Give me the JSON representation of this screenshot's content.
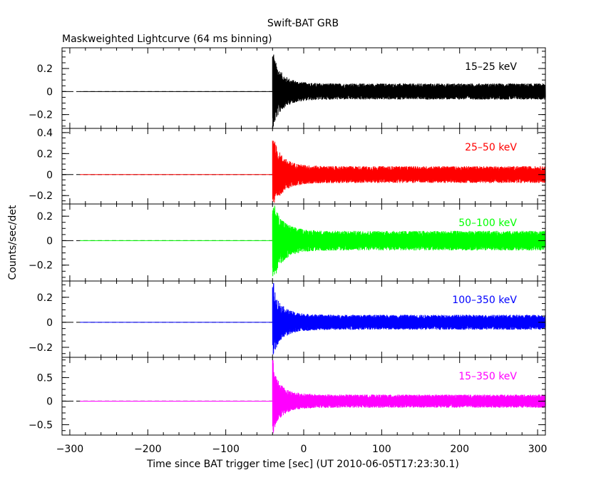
{
  "chart_data": {
    "type": "line",
    "title": "Swift-BAT GRB",
    "subtitle": "Maskweighted Lightcurve (64 ms binning)",
    "xlabel": "Time since BAT trigger time [sec] (UT 2010-06-05T17:23:30.1)",
    "ylabel": "Counts/sec/det",
    "xlim": [
      -310,
      310
    ],
    "x_ticks": [
      -300,
      -200,
      -100,
      0,
      100,
      200,
      300
    ],
    "x_tick_labels": [
      "−300",
      "−200",
      "−100",
      "0",
      "100",
      "200",
      "300"
    ],
    "grid": false,
    "zero_reference_line": "dashed",
    "flat_until": -40,
    "data_start": -287,
    "data_end": 310,
    "burst_onset": -40,
    "series": [
      {
        "name": "15–25 keV",
        "color": "#000000",
        "ylim": [
          -0.32,
          0.38
        ],
        "y_ticks": [
          -0.2,
          0,
          0.2
        ],
        "y_tick_labels": [
          "−0.2",
          "0",
          "0.2"
        ],
        "flat_value": 0,
        "onset_peak": 0.35,
        "onset_trough": -0.32,
        "steady_amplitude": 0.07
      },
      {
        "name": "25–50 keV",
        "color": "#ff0000",
        "ylim": [
          -0.28,
          0.44
        ],
        "y_ticks": [
          -0.2,
          0,
          0.2,
          0.4
        ],
        "y_tick_labels": [
          "−0.2",
          "0",
          "0.2",
          "0.4"
        ],
        "flat_value": 0,
        "onset_peak": 0.38,
        "onset_trough": -0.27,
        "steady_amplitude": 0.08
      },
      {
        "name": "50–100 keV",
        "color": "#00ff00",
        "ylim": [
          -0.33,
          0.3
        ],
        "y_ticks": [
          -0.2,
          0,
          0.2
        ],
        "y_tick_labels": [
          "−0.2",
          "0",
          "0.2"
        ],
        "flat_value": 0,
        "onset_peak": 0.27,
        "onset_trough": -0.32,
        "steady_amplitude": 0.08
      },
      {
        "name": "100–350 keV",
        "color": "#0000ff",
        "ylim": [
          -0.28,
          0.33
        ],
        "y_ticks": [
          -0.2,
          0,
          0.2
        ],
        "y_tick_labels": [
          "−0.2",
          "0",
          "0.2"
        ],
        "flat_value": 0,
        "onset_peak": 0.32,
        "onset_trough": -0.27,
        "steady_amplitude": 0.06
      },
      {
        "name": "15–350 keV",
        "color": "#ff00ff",
        "ylim": [
          -0.72,
          0.93
        ],
        "y_ticks": [
          -0.5,
          0,
          0.5
        ],
        "y_tick_labels": [
          "−0.5",
          "0",
          "0.5"
        ],
        "flat_value": 0,
        "onset_peak": 0.9,
        "onset_trough": -0.7,
        "steady_amplitude": 0.14
      }
    ]
  }
}
